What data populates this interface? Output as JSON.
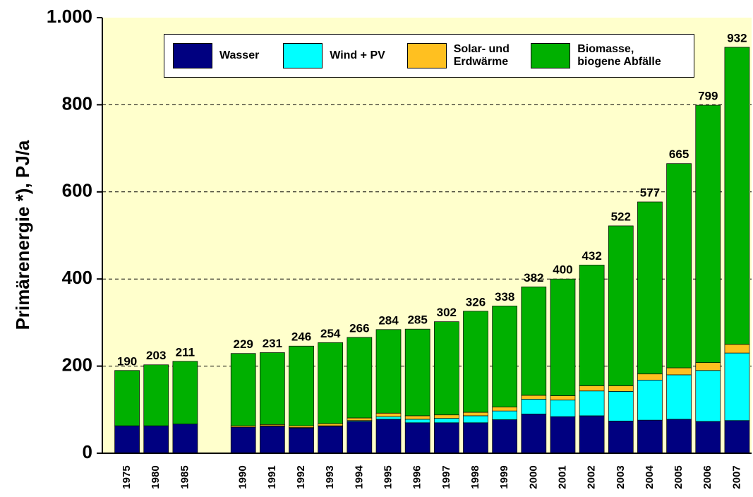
{
  "chart_data": {
    "type": "bar",
    "stacked": true,
    "y_label": "Primärenergie *), PJ/a",
    "categories": [
      "1975",
      "1980",
      "1985",
      null,
      "1990",
      "1991",
      "1992",
      "1993",
      "1994",
      "1995",
      "1996",
      "1997",
      "1998",
      "1999",
      "2000",
      "2001",
      "2002",
      "2003",
      "2004",
      "2005",
      "2006",
      "2007"
    ],
    "series": [
      {
        "name": "Wasser",
        "color": "#000080",
        "values": [
          63,
          63,
          67,
          null,
          60,
          62,
          58,
          62,
          73,
          78,
          70,
          70,
          70,
          77,
          90,
          84,
          86,
          74,
          76,
          78,
          73,
          75
        ]
      },
      {
        "name": "Wind + PV",
        "color": "#00ffff",
        "values": [
          0,
          0,
          0,
          null,
          0,
          1,
          1,
          1,
          2,
          6,
          8,
          10,
          16,
          20,
          34,
          38,
          57,
          68,
          92,
          102,
          117,
          155
        ]
      },
      {
        "name": "Solar- und\nErdwärme",
        "color": "#ffc020",
        "values": [
          0,
          0,
          0,
          null,
          3,
          3,
          4,
          5,
          6,
          8,
          8,
          8,
          8,
          9,
          9,
          10,
          12,
          13,
          14,
          16,
          18,
          20
        ]
      },
      {
        "name": "Biomasse,\nbiogene Abfälle",
        "color": "#00b000",
        "values": [
          127,
          140,
          144,
          null,
          166,
          165,
          183,
          186,
          185,
          192,
          199,
          214,
          232,
          232,
          249,
          268,
          277,
          367,
          395,
          469,
          591,
          682
        ]
      }
    ],
    "totals": [
      190,
      203,
      211,
      null,
      229,
      231,
      246,
      254,
      266,
      284,
      285,
      302,
      326,
      338,
      382,
      400,
      432,
      522,
      577,
      665,
      799,
      932
    ],
    "ylim": [
      0,
      1000
    ],
    "yticks": [
      0,
      200,
      400,
      600,
      800,
      {
        "value": 1000,
        "label": "1.000"
      }
    ],
    "grid": true
  }
}
